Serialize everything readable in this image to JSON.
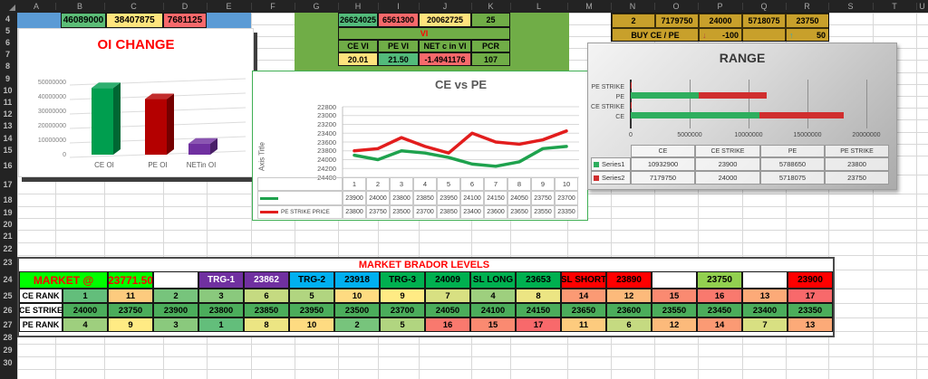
{
  "sheet": {
    "column_letters": [
      "A",
      "B",
      "C",
      "D",
      "E",
      "F",
      "G",
      "H",
      "I",
      "J",
      "K",
      "L",
      "M",
      "N",
      "O",
      "P",
      "Q",
      "R",
      "S",
      "T",
      "U"
    ],
    "row_numbers": [
      4,
      5,
      6,
      7,
      8,
      9,
      10,
      11,
      12,
      13,
      14,
      15,
      16,
      17,
      18,
      19,
      20,
      21,
      22,
      23,
      24,
      25,
      26,
      27,
      28,
      29,
      30
    ]
  },
  "oi_cells": {
    "strip_color": "#5B9BD5",
    "cells": [
      {
        "value": "46089000",
        "bg": "#5CBD77"
      },
      {
        "value": "38407875",
        "bg": "#FFE57E"
      },
      {
        "value": "7681125",
        "bg": "#F8696B"
      }
    ]
  },
  "vi_panel": {
    "bg": "#70AD47",
    "title": "VI",
    "title_color": "#FF0000",
    "top_cells": [
      {
        "value": "26624025",
        "bg": "#53BB7B"
      },
      {
        "value": "6561300",
        "bg": "#F8696B"
      },
      {
        "value": "20062725",
        "bg": "#FFE37D"
      },
      {
        "value": "25",
        "bg": "#70AD47"
      }
    ],
    "headers": [
      "CE VI",
      "PE VI",
      "NET c in VI",
      "PCR"
    ],
    "values": [
      {
        "value": "20.01",
        "bg": "#FFE37D"
      },
      {
        "value": "21.50",
        "bg": "#53BB7B"
      },
      {
        "value": "-1.4941176",
        "bg": "#F8696B"
      },
      {
        "value": "107",
        "bg": "#70AD47"
      }
    ]
  },
  "buy_panel": {
    "bg": "#C8A02B",
    "top_cells": [
      "2",
      "7179750",
      "24000",
      "5718075",
      "23750"
    ],
    "label": "BUY CE / PE",
    "down": {
      "value": "-100",
      "arrow": "↓",
      "arrow_color": "#B5483F"
    },
    "up": {
      "value": "50",
      "arrow": "↑",
      "arrow_color": "#2FA8C0"
    }
  },
  "oi_chart": {
    "type": "bar",
    "title": "OI CHANGE",
    "title_color": "#FF0000",
    "categories": [
      "CE OI",
      "PE OI",
      "NETin OI"
    ],
    "values": [
      46089000,
      38407875,
      7681125
    ],
    "bar_colors": [
      "#009E4F",
      "#B40000",
      "#7030A0"
    ],
    "y_ticks": [
      "50000000",
      "40000000",
      "30000000",
      "20000000",
      "10000000",
      "0"
    ],
    "y_max": 50000000
  },
  "ce_pe_chart": {
    "type": "line",
    "title": "CE vs PE",
    "axis_title": "Axis Title",
    "x_labels": [
      "1",
      "2",
      "3",
      "4",
      "5",
      "6",
      "7",
      "8",
      "9",
      "10"
    ],
    "y_ticks": [
      "22800",
      "23000",
      "23200",
      "23400",
      "23600",
      "23800",
      "24000",
      "24200",
      "24400"
    ],
    "y_min": 22800,
    "y_max": 24400,
    "y_axis_reversed": true,
    "series": [
      {
        "name": "",
        "color": "#1EA24D",
        "values": [
          23900,
          24000,
          23800,
          23850,
          23950,
          24100,
          24150,
          24050,
          23750,
          23700
        ]
      },
      {
        "name": "PE STRIKE PRICE",
        "color": "#E21D1D",
        "values": [
          23800,
          23750,
          23500,
          23700,
          23850,
          23400,
          23600,
          23650,
          23550,
          23350
        ]
      }
    ]
  },
  "range_chart": {
    "type": "bar",
    "orientation": "horizontal-stacked",
    "title": "RANGE",
    "categories": [
      "PE STRIKE",
      "PE",
      "CE STRIKE",
      "CE"
    ],
    "x_ticks": [
      "0",
      "5000000",
      "10000000",
      "15000000",
      "20000000"
    ],
    "x_max": 20000000,
    "column_headers": [
      "CE",
      "CE STRIKE",
      "PE",
      "PE STRIKE"
    ],
    "series": [
      {
        "name": "Series1",
        "color": "#2EAE5E",
        "values": [
          10932900,
          23900,
          5788650,
          23800
        ]
      },
      {
        "name": "Series2",
        "color": "#D02E2E",
        "values": [
          7179750,
          24000,
          5718075,
          23750
        ]
      }
    ]
  },
  "market_table": {
    "title": "MARKET BRADOR LEVELS",
    "title_color": "#FF0000",
    "level_cells": [
      {
        "text": "MARKET @",
        "bg": "#00FF00",
        "fg": "#FF0000",
        "span": 2,
        "big": true
      },
      {
        "text": "23771.50",
        "bg": "#00FF00",
        "fg": "#FF0000",
        "big": true
      },
      {
        "text": "",
        "bg": "#FFFFFF",
        "fg": "#000000"
      },
      {
        "text": "TRG-1",
        "bg": "#7030A0",
        "fg": "#FFFFFF"
      },
      {
        "text": "23862",
        "bg": "#7030A0",
        "fg": "#FFFFFF"
      },
      {
        "text": "TRG-2",
        "bg": "#00B0F0",
        "fg": "#000000"
      },
      {
        "text": "23918",
        "bg": "#00B0F0",
        "fg": "#000000"
      },
      {
        "text": "TRG-3",
        "bg": "#00B050",
        "fg": "#000000"
      },
      {
        "text": "24009",
        "bg": "#00B050",
        "fg": "#000000"
      },
      {
        "text": "SL LONG",
        "bg": "#00B050",
        "fg": "#000000"
      },
      {
        "text": "23653",
        "bg": "#00B050",
        "fg": "#000000"
      },
      {
        "text": "SL SHORT",
        "bg": "#FF0000",
        "fg": "#000000"
      },
      {
        "text": "23890",
        "bg": "#FF0000",
        "fg": "#000000"
      },
      {
        "text": "",
        "bg": "#FFFFFF",
        "fg": "#000000"
      },
      {
        "text": "23750",
        "bg": "#92D050",
        "fg": "#000000"
      },
      {
        "text": "",
        "bg": "#FFFFFF",
        "fg": "#000000"
      },
      {
        "text": "23900",
        "bg": "#FF0000",
        "fg": "#000000"
      }
    ],
    "rows": [
      {
        "label": "CE RANK",
        "type": "rank",
        "values": [
          1,
          11,
          2,
          3,
          6,
          5,
          10,
          9,
          7,
          4,
          8,
          14,
          12,
          15,
          16,
          13,
          17
        ]
      },
      {
        "label": "CE STRIKE",
        "type": "strike",
        "values": [
          24000,
          23750,
          23900,
          23800,
          23850,
          23950,
          23500,
          23700,
          24050,
          24100,
          24150,
          23650,
          23600,
          23550,
          23450,
          23400,
          23350
        ]
      },
      {
        "label": "PE RANK",
        "type": "rank",
        "values": [
          4,
          9,
          3,
          1,
          8,
          10,
          2,
          5,
          16,
          15,
          17,
          11,
          6,
          12,
          14,
          7,
          13
        ]
      }
    ],
    "strike_fill": "#4BAD5B",
    "rank_scale": {
      "min": "#63BE7B",
      "mid": "#FFEB84",
      "max": "#F8696B"
    }
  }
}
